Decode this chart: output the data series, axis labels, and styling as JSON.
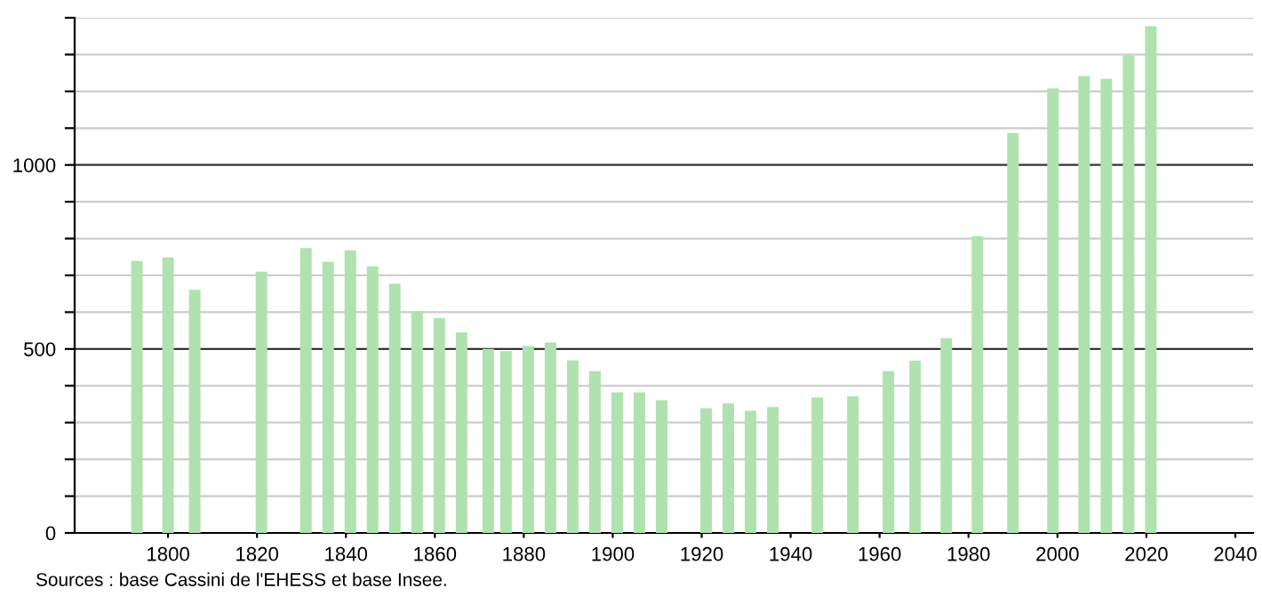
{
  "chart_data": {
    "type": "bar",
    "x": [
      1793,
      1800,
      1806,
      1821,
      1831,
      1836,
      1841,
      1846,
      1851,
      1856,
      1861,
      1866,
      1872,
      1876,
      1881,
      1886,
      1891,
      1896,
      1901,
      1906,
      1911,
      1921,
      1926,
      1931,
      1936,
      1946,
      1954,
      1962,
      1968,
      1975,
      1982,
      1990,
      1999,
      2006,
      2011,
      2016,
      2021
    ],
    "values": [
      739,
      748,
      661,
      710,
      774,
      737,
      768,
      724,
      677,
      603,
      584,
      545,
      500,
      494,
      508,
      518,
      469,
      440,
      382,
      382,
      361,
      339,
      352,
      332,
      342,
      368,
      371,
      440,
      468,
      529,
      806,
      1087,
      1208,
      1242,
      1234,
      1298,
      1377
    ],
    "color": "#b0e2b0",
    "xlim": [
      1779,
      2044
    ],
    "xticks": [
      1800,
      1820,
      1840,
      1860,
      1880,
      1900,
      1920,
      1940,
      1960,
      1980,
      2000,
      2020,
      2040
    ],
    "ylim": [
      0,
      1400
    ],
    "yticks": [
      0,
      {
        "value": 100,
        "label": null
      },
      {
        "value": 200,
        "label": null
      },
      {
        "value": 300,
        "label": null
      },
      {
        "value": 400,
        "label": null
      },
      500,
      {
        "value": 600,
        "label": null
      },
      {
        "value": 700,
        "label": null
      },
      {
        "value": 800,
        "label": null
      },
      {
        "value": 900,
        "label": null
      },
      1000,
      {
        "value": 1100,
        "label": null
      },
      {
        "value": 1200,
        "label": null
      },
      {
        "value": 1300,
        "label": null
      },
      {
        "value": 1400,
        "label": null
      }
    ],
    "grid": "y",
    "annotations": [
      "Sources : base Cassini de l'EHESS et base Insee."
    ]
  }
}
